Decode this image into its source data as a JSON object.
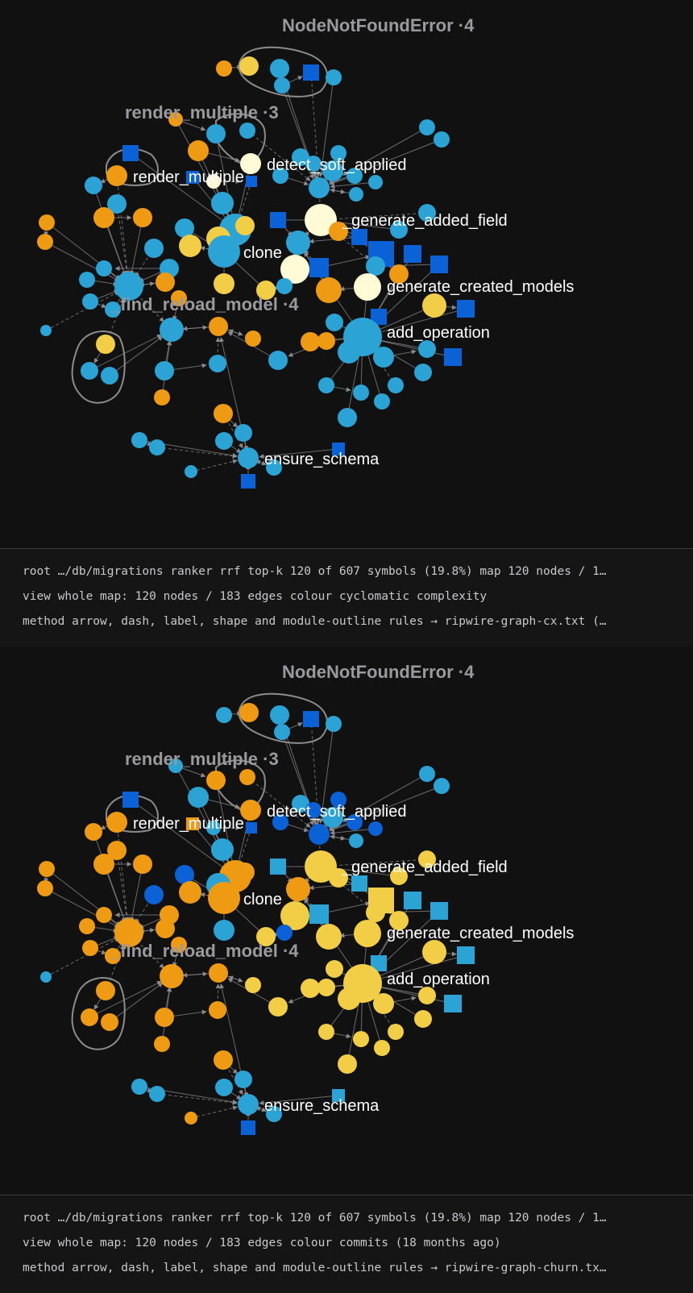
{
  "palette": {
    "background": "#111112",
    "blue": "#2ba3d4",
    "dark_blue": "#0b62d6",
    "orange": "#ee9a12",
    "yellow": "#f1ce45",
    "cream": "#fffbd6",
    "edge": "#8a8a8e",
    "outline": "#8c8c8c",
    "cluster_label": "#9a9a9e",
    "node_label": "#ffffff"
  },
  "clusters": [
    {
      "label": "NodeNotFoundError ·4"
    },
    {
      "label": "render_multiple ·3"
    },
    {
      "label": "_find_reload_model ·4"
    }
  ],
  "node_labels": [
    {
      "text": "detect_soft_applied"
    },
    {
      "text": "render_multiple"
    },
    {
      "text": "_generate_added_field"
    },
    {
      "text": "clone"
    },
    {
      "text": "generate_created_models"
    },
    {
      "text": "add_operation"
    },
    {
      "text": "ensure_schema"
    }
  ],
  "panels": [
    {
      "id": "cx",
      "info": {
        "line1": "root …/db/migrations ranker rrf top-k 120 of 607 symbols (19.8%) map 120 nodes / 1…",
        "line2": "view whole map: 120 nodes / 183 edges colour cyclomatic complexity",
        "line3": "method arrow, dash, label, shape and module-outline rules → ripwire-graph-cx.txt (…"
      }
    },
    {
      "id": "churn",
      "info": {
        "line1": "root …/db/migrations ranker rrf top-k 120 of 607 symbols (19.8%) map 120 nodes / 1…",
        "line2": "view whole map: 120 nodes / 183 edges colour commits (18 months ago)",
        "line3": "method arrow, dash, label, shape and module-outline rules → ripwire-graph-churn.tx…"
      }
    }
  ]
}
